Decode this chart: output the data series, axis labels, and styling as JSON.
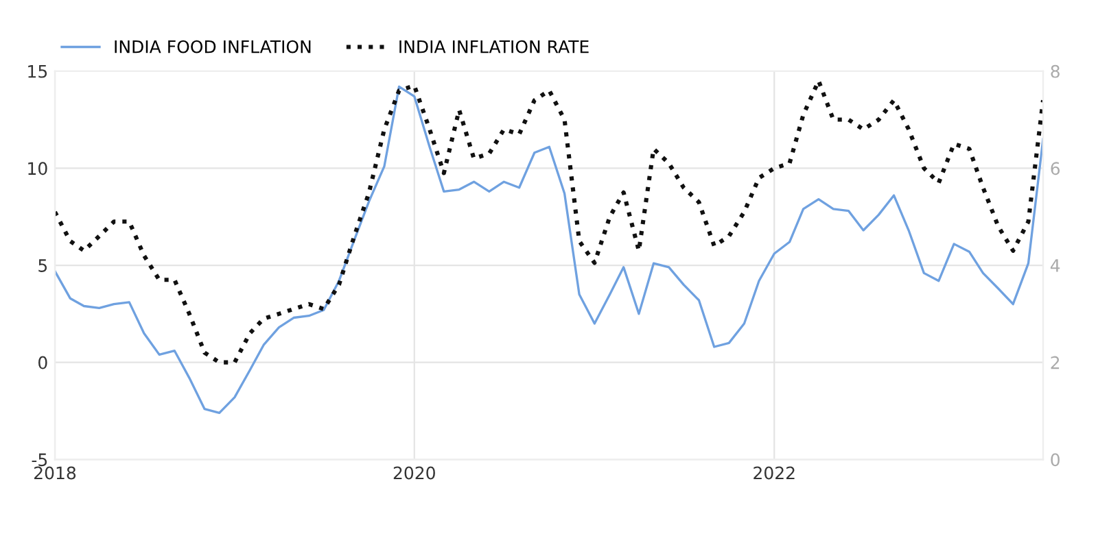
{
  "chart_data": {
    "type": "line",
    "x": [
      "2018-01",
      "2018-02",
      "2018-03",
      "2018-04",
      "2018-05",
      "2018-06",
      "2018-07",
      "2018-08",
      "2018-09",
      "2018-10",
      "2018-11",
      "2018-12",
      "2019-01",
      "2019-02",
      "2019-03",
      "2019-04",
      "2019-05",
      "2019-06",
      "2019-07",
      "2019-08",
      "2019-09",
      "2019-10",
      "2019-11",
      "2019-12",
      "2020-01",
      "2020-02",
      "2020-03",
      "2020-04",
      "2020-05",
      "2020-06",
      "2020-07",
      "2020-08",
      "2020-09",
      "2020-10",
      "2020-11",
      "2020-12",
      "2021-01",
      "2021-02",
      "2021-03",
      "2021-04",
      "2021-05",
      "2021-06",
      "2021-07",
      "2021-08",
      "2021-09",
      "2021-10",
      "2021-11",
      "2021-12",
      "2022-01",
      "2022-02",
      "2022-03",
      "2022-04",
      "2022-05",
      "2022-06",
      "2022-07",
      "2022-08",
      "2022-09",
      "2022-10",
      "2022-11",
      "2022-12",
      "2023-01",
      "2023-02",
      "2023-03",
      "2023-04",
      "2023-05",
      "2023-06",
      "2023-07"
    ],
    "series": [
      {
        "name": "INDIA FOOD INFLATION",
        "color": "#6fa1e0",
        "line_style": "solid",
        "values": [
          4.7,
          3.3,
          2.9,
          2.8,
          3.0,
          3.1,
          1.5,
          0.4,
          0.6,
          -0.8,
          -2.4,
          -2.6,
          -1.8,
          -0.4,
          0.9,
          1.8,
          2.3,
          2.4,
          2.7,
          4.2,
          6.3,
          8.3,
          10.1,
          14.2,
          13.7,
          11.1,
          8.8,
          8.9,
          9.3,
          8.8,
          9.3,
          9.0,
          10.8,
          11.1,
          8.7,
          3.5,
          2.0,
          3.5,
          4.9,
          2.5,
          5.1,
          4.9,
          4.0,
          3.2,
          0.8,
          1.0,
          2.0,
          4.2,
          5.6,
          6.2,
          7.9,
          8.4,
          7.9,
          7.8,
          6.8,
          7.6,
          8.6,
          6.8,
          4.6,
          4.2,
          6.1,
          5.7,
          4.6,
          3.8,
          3.0,
          5.1,
          11.5
        ]
      },
      {
        "name": "INDIA INFLATION RATE",
        "color": "#111111",
        "line_style": "dotted",
        "axis": "y2",
        "values": [
          5.1,
          4.5,
          4.3,
          4.6,
          4.9,
          4.9,
          4.2,
          3.7,
          3.7,
          3.0,
          2.2,
          2.0,
          2.0,
          2.6,
          2.9,
          3.0,
          3.1,
          3.2,
          3.1,
          3.6,
          4.6,
          5.5,
          6.8,
          7.6,
          7.7,
          6.8,
          5.9,
          7.2,
          6.2,
          6.3,
          6.8,
          6.7,
          7.4,
          7.6,
          7.0,
          4.5,
          4.05,
          5.0,
          5.5,
          4.3,
          6.4,
          6.1,
          5.6,
          5.3,
          4.4,
          4.6,
          5.1,
          5.8,
          6.0,
          6.1,
          7.1,
          7.8,
          7.0,
          7.0,
          6.8,
          7.0,
          7.4,
          6.8,
          6.0,
          5.7,
          6.5,
          6.4,
          5.6,
          4.8,
          4.3,
          4.9,
          7.4
        ]
      }
    ],
    "xlim": [
      "2018-01",
      "2023-07"
    ],
    "xticks": [
      "2018",
      "2020",
      "2022"
    ],
    "ylim": [
      -5,
      15
    ],
    "yticks": [
      -5,
      0,
      5,
      10,
      15
    ],
    "y2lim": [
      0,
      8
    ],
    "y2ticks": [
      0,
      2,
      4,
      6,
      8
    ],
    "grid": true,
    "legend": "top left"
  }
}
